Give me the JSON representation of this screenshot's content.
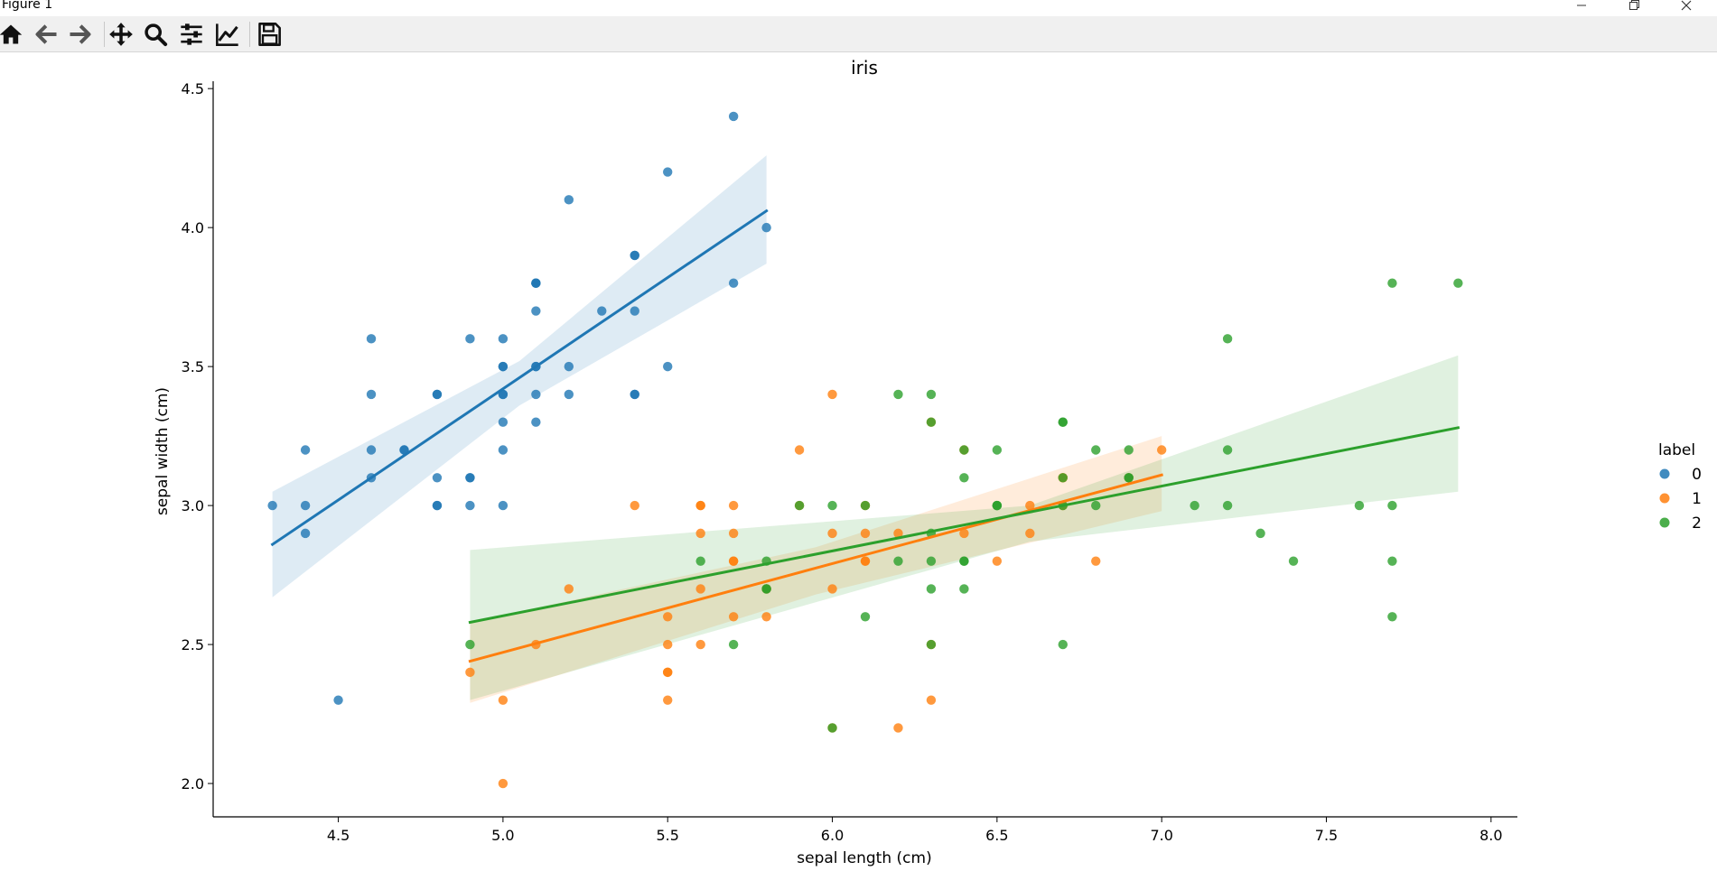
{
  "window": {
    "title": "Figure 1"
  },
  "toolbar": {
    "items": [
      {
        "name": "home-icon",
        "label": "Home"
      },
      {
        "name": "back-icon",
        "label": "Back"
      },
      {
        "name": "forward-icon",
        "label": "Forward"
      },
      {
        "name": "pan-icon",
        "label": "Pan"
      },
      {
        "name": "zoom-icon",
        "label": "Zoom"
      },
      {
        "name": "configure-subplots-icon",
        "label": "Subplots"
      },
      {
        "name": "edit-axis-icon",
        "label": "Customize"
      },
      {
        "name": "save-icon",
        "label": "Save"
      }
    ]
  },
  "chart_data": {
    "type": "scatter",
    "title": "iris",
    "xlabel": "sepal length (cm)",
    "ylabel": "sepal width (cm)",
    "xlim": [
      4.12,
      8.08
    ],
    "ylim": [
      1.88,
      4.52
    ],
    "xticks": [
      4.5,
      5.0,
      5.5,
      6.0,
      6.5,
      7.0,
      7.5,
      8.0
    ],
    "xtick_labels": [
      "4.5",
      "5.0",
      "5.5",
      "6.0",
      "6.5",
      "7.0",
      "7.5",
      "8.0"
    ],
    "yticks": [
      2.0,
      2.5,
      3.0,
      3.5,
      4.0,
      4.5
    ],
    "ytick_labels": [
      "2.0",
      "2.5",
      "3.0",
      "3.5",
      "4.0",
      "4.5"
    ],
    "legend": {
      "title": "label",
      "position": "right",
      "entries": [
        "0",
        "1",
        "2"
      ]
    },
    "series": [
      {
        "name": "0",
        "color": "#1f77b4",
        "x": [
          5.1,
          4.9,
          4.7,
          4.6,
          5.0,
          5.4,
          4.6,
          5.0,
          4.4,
          4.9,
          5.4,
          4.8,
          4.8,
          4.3,
          5.8,
          5.7,
          5.4,
          5.1,
          5.7,
          5.1,
          5.4,
          5.1,
          4.6,
          5.1,
          4.8,
          5.0,
          5.0,
          5.2,
          5.2,
          4.7,
          4.8,
          5.4,
          5.2,
          5.5,
          4.9,
          5.0,
          5.5,
          4.9,
          4.4,
          5.1,
          5.0,
          4.5,
          4.4,
          5.0,
          5.1,
          4.8,
          5.1,
          4.6,
          5.3,
          5.0
        ],
        "y": [
          3.5,
          3.0,
          3.2,
          3.1,
          3.6,
          3.9,
          3.4,
          3.4,
          2.9,
          3.1,
          3.7,
          3.4,
          3.0,
          3.0,
          4.0,
          4.4,
          3.9,
          3.5,
          3.8,
          3.8,
          3.4,
          3.7,
          3.6,
          3.3,
          3.4,
          3.0,
          3.4,
          3.5,
          3.4,
          3.2,
          3.1,
          3.4,
          4.1,
          4.2,
          3.1,
          3.2,
          3.5,
          3.6,
          3.0,
          3.4,
          3.5,
          2.3,
          3.2,
          3.5,
          3.8,
          3.0,
          3.8,
          3.2,
          3.7,
          3.3
        ],
        "fit": {
          "x": [
            4.3,
            5.8
          ],
          "y": [
            2.86,
            4.06
          ]
        },
        "ci": {
          "x": [
            4.3,
            5.05,
            5.8
          ],
          "upper": [
            3.05,
            3.52,
            4.26
          ],
          "lower": [
            2.67,
            3.36,
            3.87
          ]
        }
      },
      {
        "name": "1",
        "color": "#ff7f0e",
        "x": [
          7.0,
          6.4,
          6.9,
          5.5,
          6.5,
          5.7,
          6.3,
          4.9,
          6.6,
          5.2,
          5.0,
          5.9,
          6.0,
          6.1,
          5.6,
          6.7,
          5.6,
          5.8,
          6.2,
          5.6,
          5.9,
          6.1,
          6.3,
          6.1,
          6.4,
          6.6,
          6.8,
          6.7,
          6.0,
          5.7,
          5.5,
          5.5,
          5.8,
          6.0,
          5.4,
          6.0,
          6.7,
          6.3,
          5.6,
          5.5,
          5.5,
          6.1,
          5.8,
          5.0,
          5.6,
          5.7,
          5.7,
          6.2,
          5.1,
          5.7
        ],
        "y": [
          3.2,
          3.2,
          3.1,
          2.3,
          2.8,
          2.8,
          3.3,
          2.4,
          2.9,
          2.7,
          2.0,
          3.0,
          2.2,
          2.9,
          2.9,
          3.1,
          3.0,
          2.7,
          2.2,
          2.5,
          3.2,
          2.8,
          2.5,
          2.8,
          2.9,
          3.0,
          2.8,
          3.0,
          2.9,
          2.6,
          2.4,
          2.4,
          2.7,
          2.7,
          3.0,
          3.4,
          3.1,
          2.3,
          3.0,
          2.5,
          2.6,
          3.0,
          2.6,
          2.3,
          2.7,
          3.0,
          2.9,
          2.9,
          2.5,
          2.8
        ],
        "fit": {
          "x": [
            4.9,
            7.0
          ],
          "y": [
            2.44,
            3.11
          ]
        },
        "ci": {
          "x": [
            4.9,
            5.95,
            7.0
          ],
          "upper": [
            2.58,
            2.85,
            3.25
          ],
          "lower": [
            2.29,
            2.68,
            2.98
          ]
        }
      },
      {
        "name": "2",
        "color": "#2ca02c",
        "x": [
          6.3,
          5.8,
          7.1,
          6.3,
          6.5,
          7.6,
          4.9,
          7.3,
          6.7,
          7.2,
          6.5,
          6.4,
          6.8,
          5.7,
          5.8,
          6.4,
          6.5,
          7.7,
          7.7,
          6.0,
          6.9,
          5.6,
          7.7,
          6.3,
          6.7,
          7.2,
          6.2,
          6.1,
          6.4,
          7.2,
          7.4,
          7.9,
          6.4,
          6.3,
          6.1,
          7.7,
          6.3,
          6.4,
          6.0,
          6.9,
          6.7,
          6.9,
          5.8,
          6.8,
          6.7,
          6.7,
          6.3,
          6.5,
          6.2,
          5.9
        ],
        "y": [
          3.3,
          2.7,
          3.0,
          2.9,
          3.0,
          3.0,
          2.5,
          2.9,
          2.5,
          3.6,
          3.2,
          2.7,
          3.0,
          2.5,
          2.8,
          3.2,
          3.0,
          3.8,
          2.6,
          2.2,
          3.2,
          2.8,
          2.8,
          2.7,
          3.3,
          3.2,
          2.8,
          3.0,
          2.8,
          3.0,
          2.8,
          3.8,
          2.8,
          2.8,
          2.6,
          3.0,
          3.4,
          3.1,
          3.0,
          3.1,
          3.1,
          3.1,
          2.7,
          3.2,
          3.3,
          3.0,
          2.5,
          3.0,
          3.4,
          3.0
        ],
        "fit": {
          "x": [
            4.9,
            7.9
          ],
          "y": [
            2.58,
            3.28
          ]
        },
        "ci": {
          "x": [
            4.9,
            6.6,
            7.9
          ],
          "upper": [
            2.84,
            3.0,
            3.54
          ],
          "lower": [
            2.3,
            2.87,
            3.05
          ]
        }
      }
    ]
  }
}
